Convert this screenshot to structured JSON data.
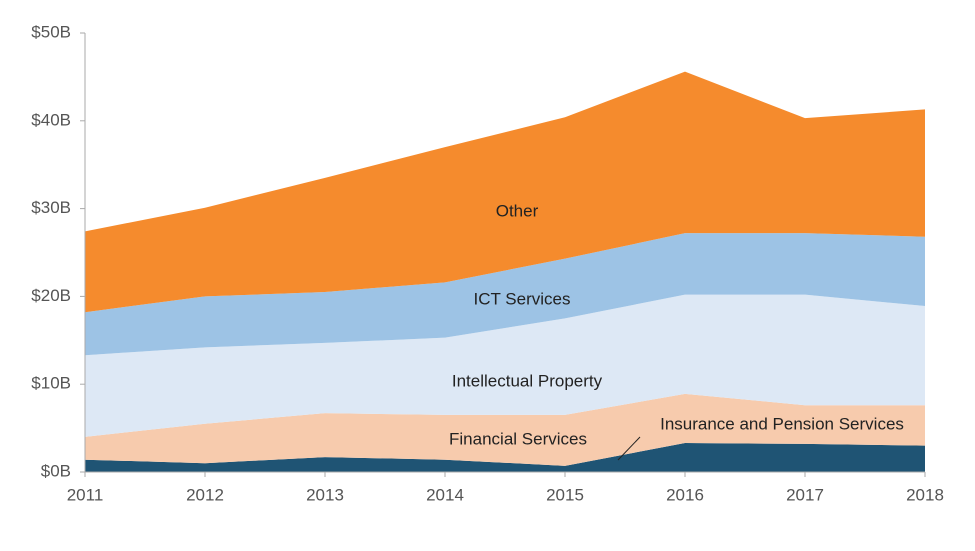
{
  "chart_data": {
    "type": "stacked-area",
    "categories": [
      "2011",
      "2012",
      "2013",
      "2014",
      "2015",
      "2016",
      "2017",
      "2018"
    ],
    "series": [
      {
        "name": "Insurance and Pension Services",
        "color": "#1f5474",
        "values": [
          1.4,
          1.0,
          1.7,
          1.4,
          0.7,
          3.3,
          3.2,
          3.0
        ]
      },
      {
        "name": "Financial Services",
        "color": "#f7cbad",
        "values": [
          2.6,
          4.5,
          5.0,
          5.1,
          5.8,
          5.6,
          4.4,
          4.6
        ]
      },
      {
        "name": "Intellectual Property",
        "color": "#dde8f5",
        "values": [
          9.3,
          8.7,
          8.0,
          8.8,
          11.0,
          11.3,
          12.6,
          11.3
        ]
      },
      {
        "name": "ICT Services",
        "color": "#9dc3e5",
        "values": [
          4.9,
          5.8,
          5.8,
          6.3,
          6.8,
          7.0,
          7.0,
          7.9
        ]
      },
      {
        "name": "Other",
        "color": "#f58b2d",
        "values": [
          9.2,
          10.1,
          13.0,
          15.4,
          16.1,
          18.4,
          13.1,
          14.5
        ]
      }
    ],
    "ylim": [
      0,
      50
    ],
    "yticks": [
      {
        "value": 0,
        "label": "$0B"
      },
      {
        "value": 10,
        "label": "$10B"
      },
      {
        "value": 20,
        "label": "$20B"
      },
      {
        "value": 30,
        "label": "$30B"
      },
      {
        "value": 40,
        "label": "$40B"
      },
      {
        "value": 50,
        "label": "$50B"
      }
    ],
    "grid": false
  }
}
